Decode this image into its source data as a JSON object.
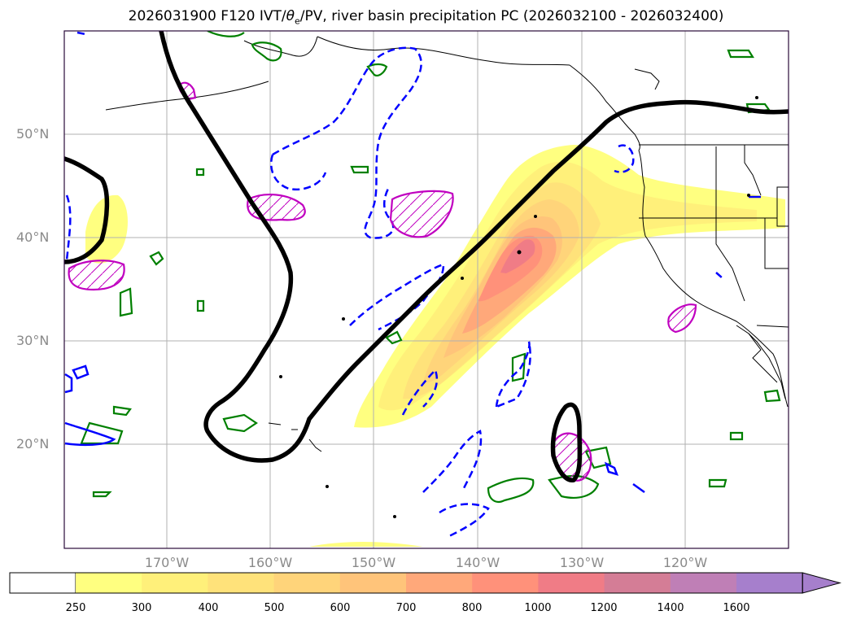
{
  "title": {
    "prefix": "2026031900 F120 IVT/",
    "theta": "θ",
    "theta_sub": "e",
    "suffix": "/PV, river basin precipitation PC (2026032100 - 2026032400)"
  },
  "latitude_labels": [
    "50°N",
    "40°N",
    "30°N",
    "20°N"
  ],
  "longitude_labels": [
    "170°W",
    "160°W",
    "150°W",
    "140°W",
    "130°W",
    "120°W"
  ],
  "colorbar": {
    "ticks": [
      "250",
      "300",
      "400",
      "500",
      "600",
      "700",
      "800",
      "1000",
      "1200",
      "1400",
      "1600"
    ],
    "colors": [
      "#ffff80",
      "#fff07a",
      "#ffe27a",
      "#ffd47a",
      "#ffc47a",
      "#ffa87a",
      "#ff917a",
      "#f07c86",
      "#d47d96",
      "#bf7fb6",
      "#a67fcc"
    ],
    "extend": "max"
  },
  "colors": {
    "streamline": "#000000",
    "pv_contour": "#0000ff",
    "theta_contour": "#008000",
    "precip_hatch": "#c000c0"
  }
}
